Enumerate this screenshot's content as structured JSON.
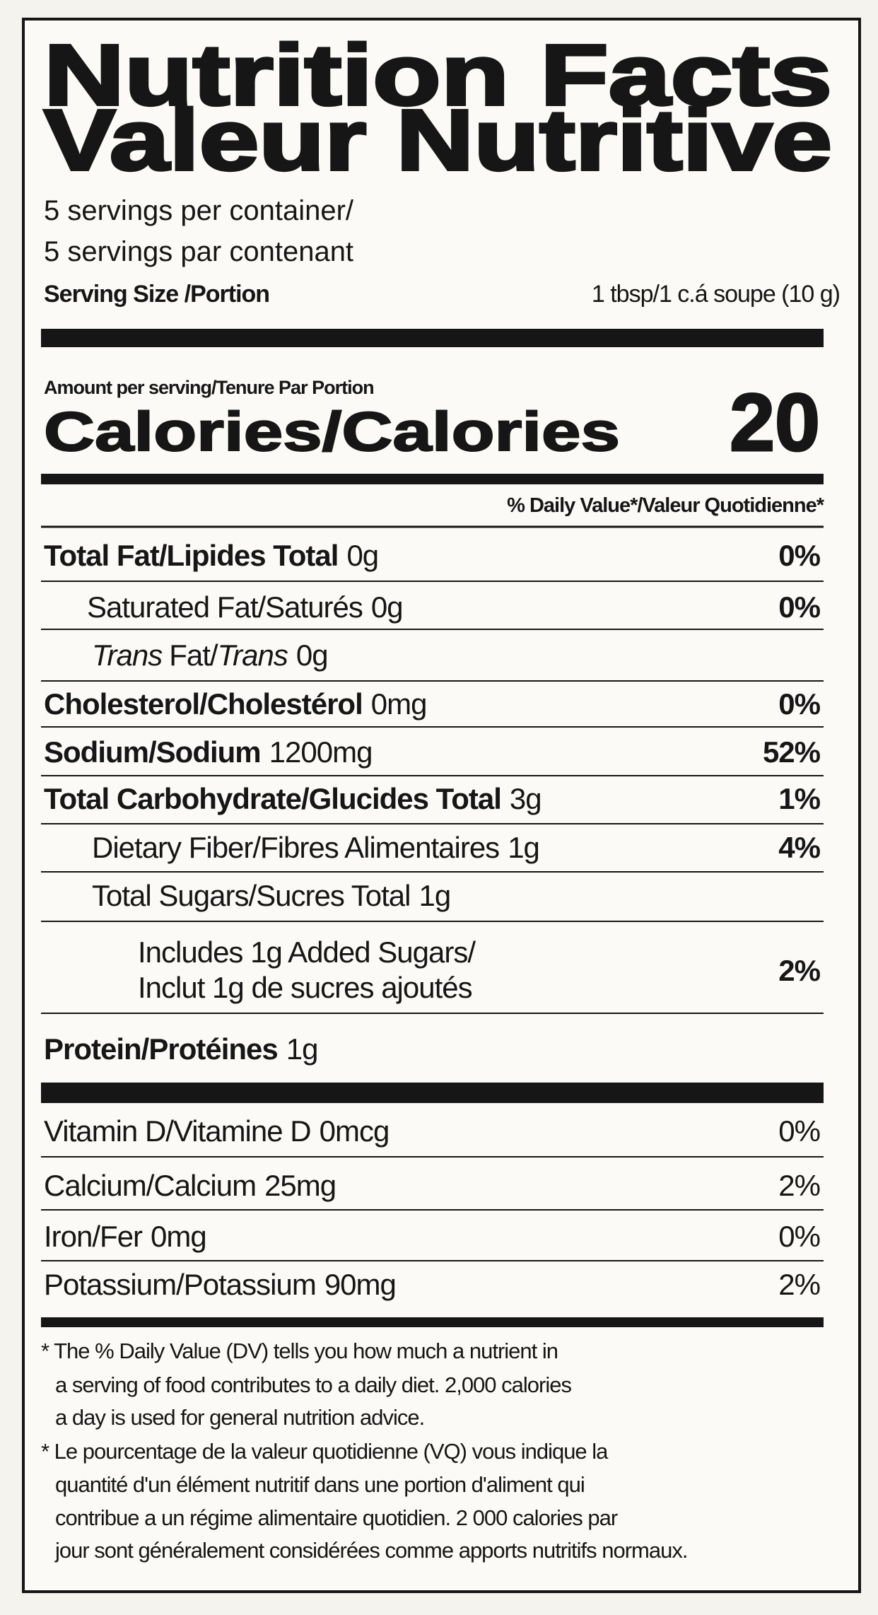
{
  "header": {
    "title": "Nutrition Facts",
    "title_fr": "Valeur Nutritive",
    "servings": "5 servings per container/",
    "servings_fr": "5 servings par contenant",
    "serving_size_label": "Serving Size /Portion",
    "serving_size": "1 tbsp/1 c.á soupe (10 g)"
  },
  "calories": {
    "amount_label": "Amount per serving/Tenure Par Portion",
    "label": "Calories/Calories",
    "value": "20"
  },
  "daily_value_header": "% Daily Value*/Valeur Quotidienne*",
  "nutrients": [
    {
      "name": "Total Fat/Lipides Total",
      "amount": "0g",
      "dv": "0%"
    },
    {
      "name": "Saturated Fat/Saturés",
      "amount": "0g",
      "dv": "0%"
    },
    {
      "name_parts": [
        "Trans",
        "Fat/",
        "Trans"
      ],
      "amount": "0g"
    },
    {
      "name": "Cholesterol/Cholestérol",
      "amount": "0mg",
      "dv": "0%"
    },
    {
      "name": "Sodium/Sodium",
      "amount": "1200mg",
      "dv": "52%"
    },
    {
      "name": "Total Carbohydrate/Glucides Total",
      "amount": "3g",
      "dv": "1%"
    },
    {
      "name": "Dietary Fiber/Fibres Alimentaires",
      "amount": "1g",
      "dv": "4%"
    },
    {
      "name": "Total Sugars/Sucres Total",
      "amount": "1g"
    },
    {
      "name": "Includes 1g Added Sugars/",
      "name_fr": "Inclut 1g de sucres ajoutés",
      "dv": "2%"
    },
    {
      "name": "Protein/Protéines",
      "amount": "1g"
    }
  ],
  "vitamins": [
    {
      "name": "Vitamin D/Vitamine D",
      "amount": "0mcg",
      "dv": "0%"
    },
    {
      "name": "Calcium/Calcium",
      "amount": "25mg",
      "dv": "2%"
    },
    {
      "name": "Iron/Fer",
      "amount": "0mg",
      "dv": "0%"
    },
    {
      "name": "Potassium/Potassium",
      "amount": "90mg",
      "dv": "2%"
    }
  ],
  "footnote": {
    "en": [
      "* The % Daily Value (DV) tells you how much a nutrient in",
      "a serving of food contributes to a daily diet. 2,000 calories",
      "a day is used for general nutrition advice."
    ],
    "fr": [
      "* Le pourcentage de la valeur quotidienne (VQ) vous indique la",
      "quantité d'un élément nutritif dans une portion d'aliment qui",
      "contribue a un régime alimentaire quotidien. 2 000 calories par",
      "jour sont généralement considérées comme apports nutritifs normaux."
    ]
  }
}
